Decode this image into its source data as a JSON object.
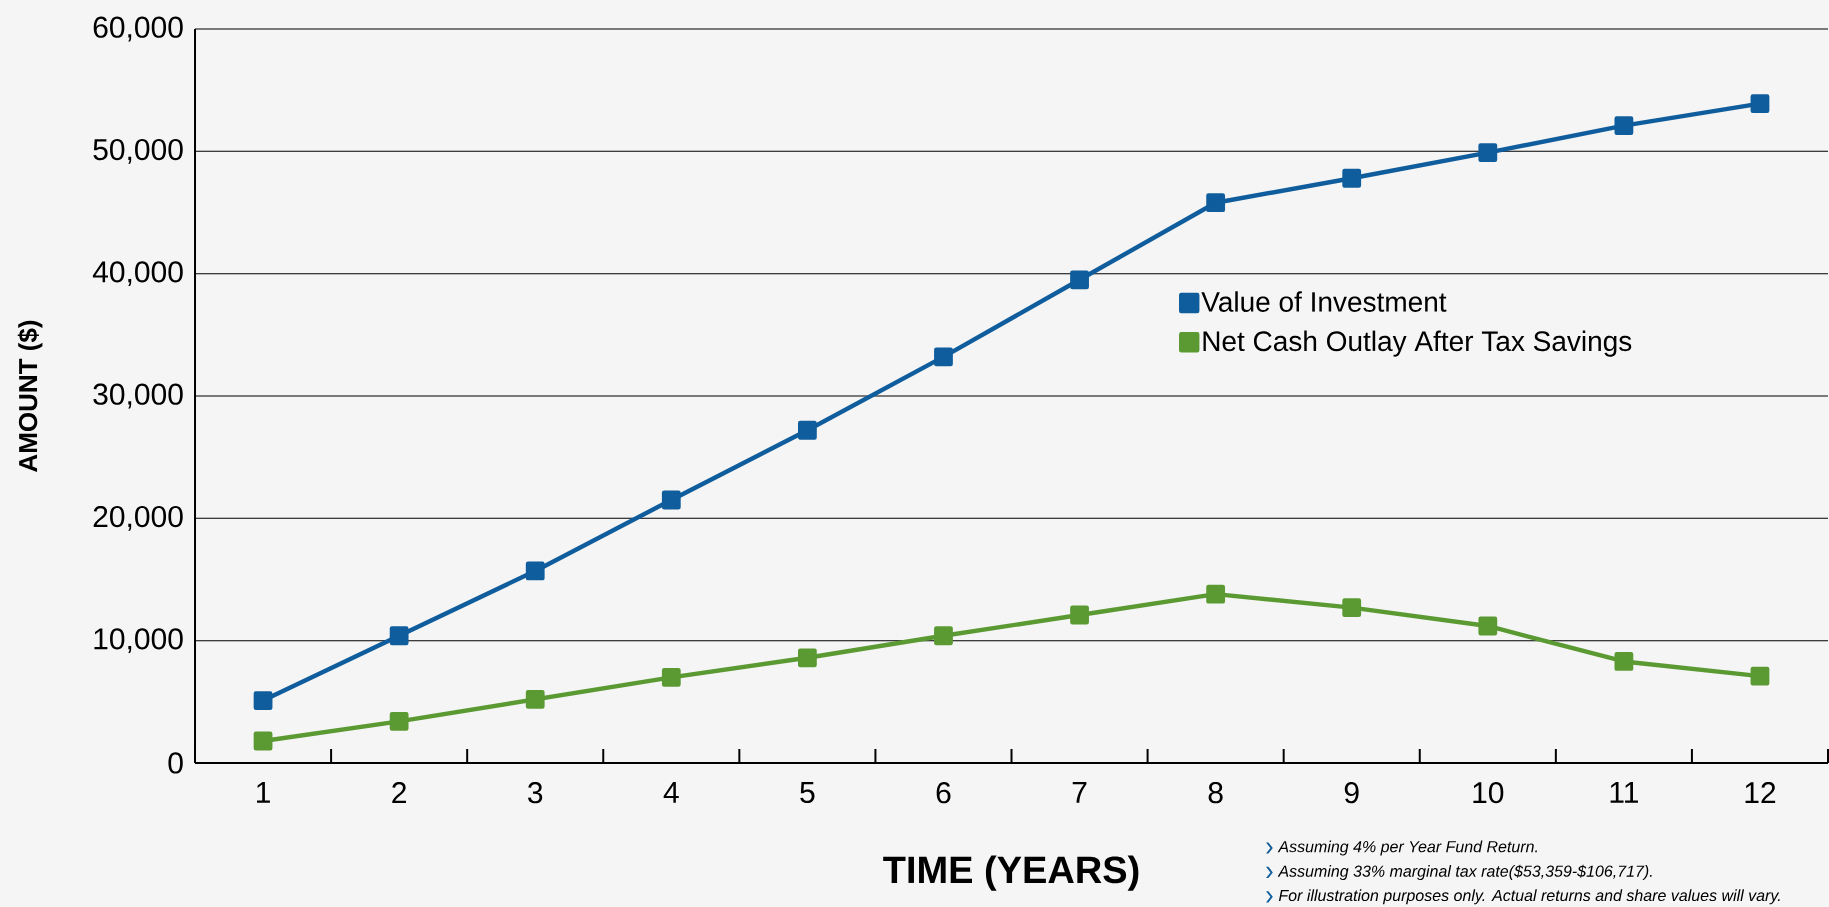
{
  "chart_data": {
    "type": "line",
    "xlabel": "TIME (YEARS)",
    "ylabel": "AMOUNT ($)",
    "categories": [
      "1",
      "2",
      "3",
      "4",
      "5",
      "6",
      "7",
      "8",
      "9",
      "10",
      "11",
      "12"
    ],
    "series": [
      {
        "name": "Value of Investment",
        "color": "#0f5d9c",
        "values": [
          5100,
          10400,
          15700,
          21500,
          27200,
          33200,
          39500,
          45800,
          47800,
          49900,
          52100,
          53900
        ]
      },
      {
        "name": "Net Cash Outlay After Tax Savings",
        "color": "#5b9a33",
        "values": [
          1800,
          3400,
          5200,
          7000,
          8600,
          10400,
          12100,
          13800,
          12700,
          11200,
          8300,
          7100
        ]
      }
    ],
    "ylim": [
      0,
      60000
    ],
    "yticks": [
      0,
      {
        "value": 10000,
        "label": "10,000"
      },
      {
        "value": 20000,
        "label": "20,000"
      },
      {
        "value": 30000,
        "label": "30,000"
      },
      {
        "value": 40000,
        "label": "40,000"
      },
      {
        "value": 50000,
        "label": "50,000"
      },
      {
        "value": 60000,
        "label": "60,000"
      }
    ],
    "grid": "y",
    "legend": "right",
    "marker": "square",
    "line_style": "solid",
    "annotations": [
      "Assuming 4% per Year Fund Return.",
      "Assuming 33% marginal tax rate($53,359-$106,717).",
      "For illustration purposes only. Actual returns and share values will vary."
    ]
  }
}
